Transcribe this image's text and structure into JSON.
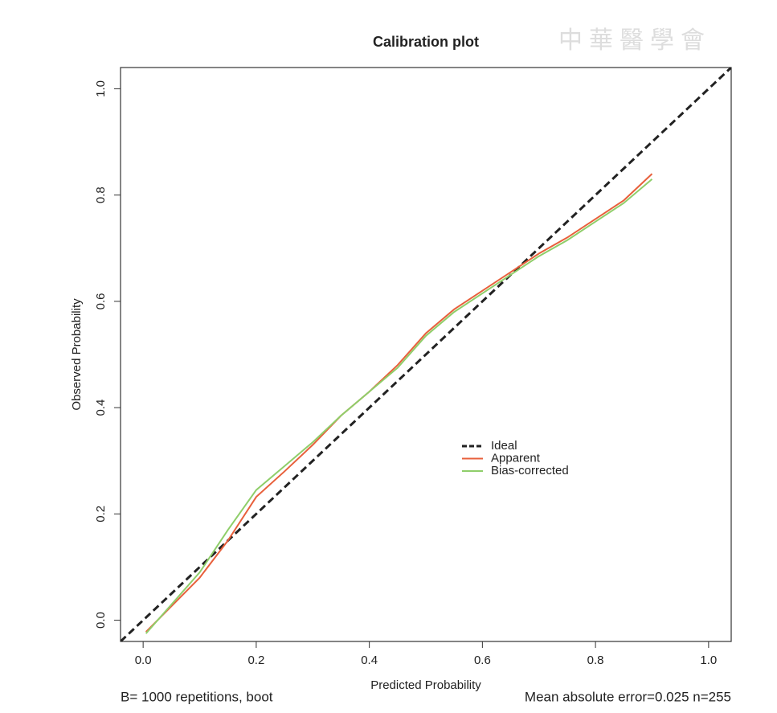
{
  "chart_data": {
    "type": "line",
    "title": "Calibration plot",
    "x_label": "Predicted Probability",
    "y_label": "Observed Probability",
    "footnote_left": "B= 1000 repetitions, boot",
    "footnote_right": "Mean absolute error=0.025 n=255",
    "watermark": "中華醫學會",
    "xlim": [
      -0.04,
      1.04
    ],
    "ylim": [
      -0.04,
      1.04
    ],
    "xticks": [
      {
        "value": 0,
        "label": "0.0"
      },
      0.2,
      0.4,
      0.6,
      0.8,
      {
        "value": 1,
        "label": "1.0"
      }
    ],
    "yticks": [
      {
        "value": 0,
        "label": "0.0"
      },
      0.2,
      0.4,
      0.6,
      0.8,
      {
        "value": 1,
        "label": "1.0"
      }
    ],
    "legend_position": "right",
    "series": [
      {
        "name": "Ideal",
        "color": "#222222",
        "dashed": true,
        "x": [
          -0.04,
          1.04
        ],
        "values": [
          -0.04,
          1.04
        ]
      },
      {
        "name": "Apparent",
        "color": "#e8603c",
        "dashed": false,
        "x": [
          0.005,
          0.1,
          0.15,
          0.2,
          0.25,
          0.3,
          0.35,
          0.4,
          0.45,
          0.5,
          0.55,
          0.6,
          0.65,
          0.7,
          0.75,
          0.8,
          0.85,
          0.9
        ],
        "values": [
          -0.022,
          0.08,
          0.15,
          0.232,
          0.28,
          0.33,
          0.385,
          0.43,
          0.48,
          0.54,
          0.585,
          0.62,
          0.655,
          0.69,
          0.72,
          0.755,
          0.79,
          0.84
        ]
      },
      {
        "name": "Bias-corrected",
        "color": "#8fce6a",
        "dashed": false,
        "x": [
          0.005,
          0.1,
          0.15,
          0.2,
          0.25,
          0.3,
          0.35,
          0.4,
          0.45,
          0.5,
          0.55,
          0.6,
          0.65,
          0.7,
          0.75,
          0.8,
          0.85,
          0.9
        ],
        "values": [
          -0.025,
          0.09,
          0.17,
          0.245,
          0.29,
          0.335,
          0.385,
          0.43,
          0.475,
          0.535,
          0.58,
          0.615,
          0.65,
          0.685,
          0.715,
          0.75,
          0.785,
          0.83
        ]
      }
    ]
  }
}
